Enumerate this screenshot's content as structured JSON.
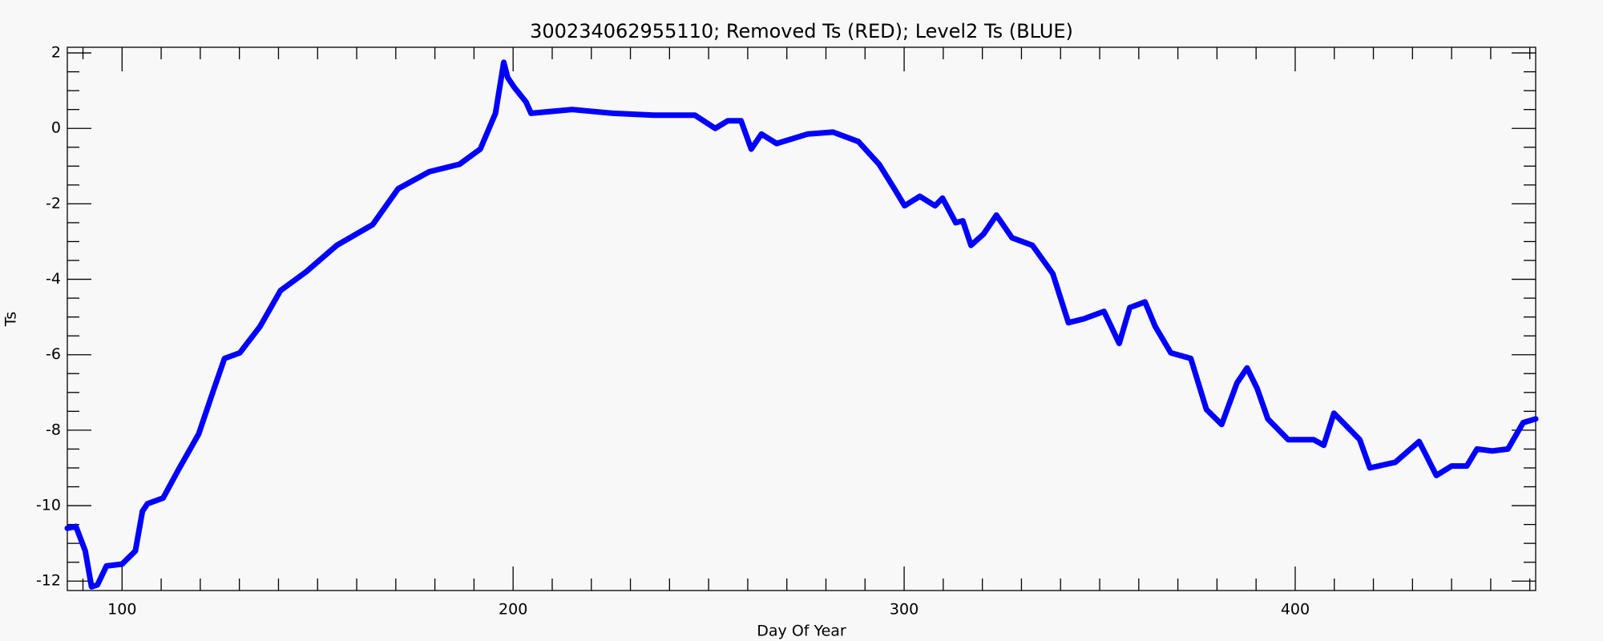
{
  "chart_data": {
    "type": "line",
    "title": "300234062955110; Removed Ts (RED); Level2 Ts (BLUE)",
    "xlabel": "Day Of Year",
    "ylabel": "Ts",
    "color": "#0000ff",
    "xlim": [
      86,
      461.5
    ],
    "ylim": [
      -12.25,
      2.15
    ],
    "xticks": [
      100,
      200,
      300,
      400
    ],
    "yticks": [
      -12,
      -10,
      -8,
      -6,
      -4,
      -2,
      0,
      2
    ],
    "x": [
      86,
      88.2,
      90.6,
      92.2,
      93.7,
      96,
      100,
      103.4,
      105.2,
      106.5,
      110.5,
      114.4,
      119.6,
      123.5,
      126.2,
      130.1,
      135.3,
      140.5,
      147.1,
      154.9,
      164.1,
      170.6,
      178.5,
      186.3,
      191.6,
      195.5,
      197.6,
      198.6,
      200.2,
      203.3,
      204.6,
      209.9,
      215.1,
      225.6,
      236,
      246.5,
      251.7,
      254.9,
      258.3,
      260.9,
      263.5,
      267.4,
      275.3,
      281.8,
      288.3,
      293.6,
      297.5,
      300.1,
      304,
      307.9,
      309.8,
      313.2,
      315,
      317.1,
      320.3,
      323.6,
      327.6,
      332.8,
      338,
      342,
      345.9,
      351.1,
      355,
      357.7,
      361.6,
      364.2,
      368.2,
      373.3,
      377.3,
      381.2,
      385.1,
      387.7,
      390.3,
      393,
      398.2,
      404.7,
      407.3,
      409.9,
      416.5,
      419.1,
      425.6,
      431.7,
      436.1,
      440,
      443.9,
      446.5,
      450.4,
      454.4,
      458.3,
      461.5
    ],
    "values": [
      -10.6,
      -10.55,
      -11.2,
      -12.15,
      -12.1,
      -11.6,
      -11.55,
      -11.2,
      -10.15,
      -9.95,
      -9.8,
      -9.05,
      -8.1,
      -6.9,
      -6.1,
      -5.95,
      -5.25,
      -4.3,
      -3.8,
      -3.1,
      -2.55,
      -1.6,
      -1.15,
      -0.95,
      -0.55,
      0.4,
      1.75,
      1.35,
      1.1,
      0.7,
      0.4,
      0.45,
      0.5,
      0.4,
      0.35,
      0.35,
      0,
      0.2,
      0.2,
      -0.55,
      -0.15,
      -0.4,
      -0.15,
      -0.1,
      -0.35,
      -0.95,
      -1.6,
      -2.05,
      -1.8,
      -2.05,
      -1.85,
      -2.5,
      -2.45,
      -3.1,
      -2.8,
      -2.3,
      -2.9,
      -3.1,
      -3.85,
      -5.15,
      -5.05,
      -4.85,
      -5.7,
      -4.75,
      -4.6,
      -5.25,
      -5.95,
      -6.1,
      -7.45,
      -7.85,
      -6.75,
      -6.35,
      -6.9,
      -7.7,
      -8.25,
      -8.25,
      -8.4,
      -7.55,
      -8.25,
      -9,
      -8.85,
      -8.3,
      -9.2,
      -8.95,
      -8.95,
      -8.5,
      -8.55,
      -8.5,
      -7.8,
      -7.7
    ]
  }
}
